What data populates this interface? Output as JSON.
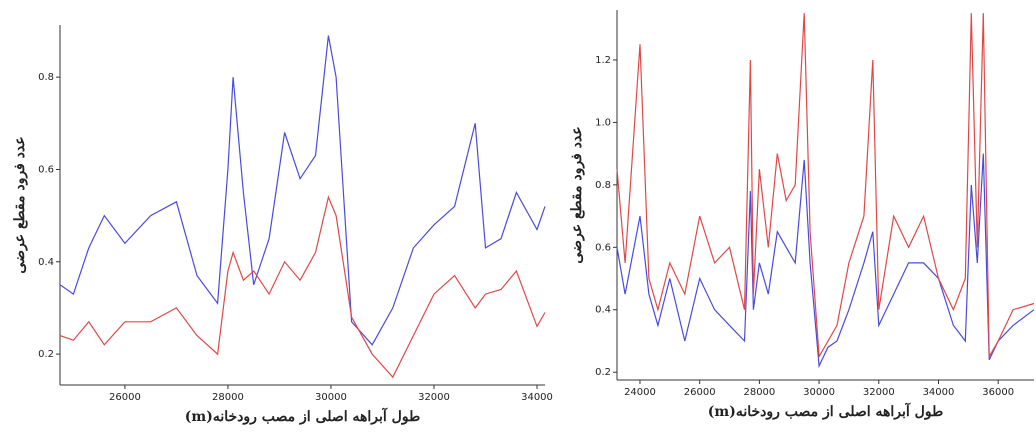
{
  "chart_data": [
    {
      "type": "line",
      "y_label": "عدد فرود مقطع عرضی",
      "x_label": "طول آبراهه اصلی از مصب رودخانه(m)",
      "x": [
        24740,
        25000,
        25300,
        25600,
        26000,
        26500,
        27000,
        27400,
        27800,
        28000,
        28100,
        28300,
        28500,
        28800,
        29100,
        29400,
        29700,
        29950,
        30100,
        30400,
        30800,
        31200,
        31600,
        32000,
        32400,
        32800,
        33000,
        33300,
        33600,
        34000,
        34155
      ],
      "series": [
        {
          "color": "#4a4ae0",
          "values": [
            0.35,
            0.33,
            0.43,
            0.5,
            0.44,
            0.5,
            0.53,
            0.37,
            0.31,
            0.6,
            0.8,
            0.55,
            0.35,
            0.45,
            0.68,
            0.58,
            0.63,
            0.89,
            0.8,
            0.27,
            0.22,
            0.3,
            0.43,
            0.48,
            0.52,
            0.7,
            0.43,
            0.45,
            0.55,
            0.47,
            0.52
          ]
        },
        {
          "color": "#e04848",
          "values": [
            0.24,
            0.23,
            0.27,
            0.22,
            0.27,
            0.27,
            0.3,
            0.24,
            0.2,
            0.38,
            0.42,
            0.36,
            0.38,
            0.33,
            0.4,
            0.36,
            0.42,
            0.54,
            0.5,
            0.28,
            0.2,
            0.15,
            0.24,
            0.33,
            0.37,
            0.3,
            0.33,
            0.34,
            0.38,
            0.26,
            0.29
          ]
        }
      ],
      "xlim": [
        24740,
        34155
      ],
      "xticks": [
        26000,
        28000,
        30000,
        32000,
        34000
      ],
      "ylim": [
        0.133,
        0.913
      ],
      "yticks": [
        0.2,
        0.4,
        0.6,
        0.8
      ]
    },
    {
      "type": "line",
      "y_label": "عدد فرود مقطع عرضی",
      "x_label": "طول آبراهه اصلی از مصب رودخانه(m)",
      "x": [
        23230,
        23500,
        24000,
        24300,
        24600,
        25000,
        25500,
        26000,
        26500,
        27000,
        27500,
        27700,
        27800,
        28000,
        28300,
        28600,
        28900,
        29200,
        29500,
        29700,
        30000,
        30300,
        30600,
        31000,
        31500,
        31800,
        32000,
        32500,
        33000,
        33500,
        34000,
        34500,
        34900,
        35100,
        35300,
        35500,
        35700,
        36000,
        36500,
        37200
      ],
      "series": [
        {
          "color": "#4a4ae0",
          "values": [
            0.6,
            0.45,
            0.7,
            0.45,
            0.35,
            0.5,
            0.3,
            0.5,
            0.4,
            0.35,
            0.3,
            0.78,
            0.4,
            0.55,
            0.45,
            0.65,
            0.6,
            0.55,
            0.88,
            0.55,
            0.22,
            0.28,
            0.3,
            0.4,
            0.55,
            0.65,
            0.35,
            0.45,
            0.55,
            0.55,
            0.5,
            0.35,
            0.3,
            0.8,
            0.55,
            0.9,
            0.24,
            0.3,
            0.35,
            0.4
          ]
        },
        {
          "color": "#e04848",
          "values": [
            0.85,
            0.55,
            1.25,
            0.5,
            0.4,
            0.55,
            0.45,
            0.7,
            0.55,
            0.6,
            0.4,
            1.2,
            0.45,
            0.85,
            0.6,
            0.9,
            0.75,
            0.8,
            1.35,
            0.65,
            0.25,
            0.3,
            0.35,
            0.55,
            0.7,
            1.2,
            0.4,
            0.7,
            0.6,
            0.7,
            0.5,
            0.4,
            0.5,
            1.35,
            0.6,
            1.35,
            0.25,
            0.3,
            0.4,
            0.42
          ]
        }
      ],
      "xlim": [
        23230,
        37200
      ],
      "xticks": [
        24000,
        26000,
        28000,
        30000,
        32000,
        34000,
        36000
      ],
      "ylim": [
        0.175,
        1.36
      ],
      "yticks": [
        0.2,
        0.4,
        0.6,
        0.8,
        {
          "value": 1.0,
          "label": "1.0"
        },
        1.2
      ]
    }
  ]
}
